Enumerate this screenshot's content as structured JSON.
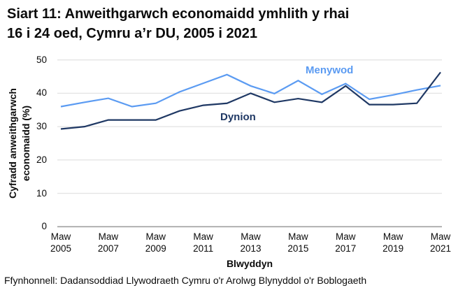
{
  "page": {
    "title_line1": "Siart 11: Anweithgarwch economaidd ymhlith y rhai",
    "title_line2": "16 i 24 oed, Cymru a’r DU, 2005 i 2021",
    "source": "Ffynhonnell: Dadansoddiad Llywodraeth Cymru o'r Arolwg Blynyddol o'r Boblogaeth"
  },
  "chart_data": {
    "type": "line",
    "title": "Siart 11: Anweithgarwch economaidd ymhlith y rhai 16 i 24 oed, Cymru a’r DU, 2005 i 2021",
    "xlabel": "Blwyddyn",
    "ylabel": "Cyfradd anweithgarwch economaidd (%)",
    "ylabel_lines": [
      "Cyfradd anweithgarwch",
      "economaidd (%)"
    ],
    "ylim": [
      0,
      50
    ],
    "yticks": [
      0,
      10,
      20,
      30,
      40,
      50
    ],
    "grid": "horizontal",
    "legend_position": "inline-labels",
    "x": [
      2005,
      2006,
      2007,
      2008,
      2009,
      2010,
      2011,
      2012,
      2013,
      2014,
      2015,
      2016,
      2017,
      2018,
      2019,
      2020,
      2021
    ],
    "xticks": [
      2005,
      2007,
      2009,
      2011,
      2013,
      2015,
      2017,
      2019,
      2021
    ],
    "xtick_month_label": "Maw",
    "series": [
      {
        "name": "Menywod",
        "color": "#5B9BF2",
        "values": [
          36.0,
          37.3,
          38.5,
          36.0,
          37.0,
          40.4,
          43.0,
          45.6,
          42.2,
          39.9,
          43.8,
          39.7,
          42.9,
          38.2,
          39.5,
          41.0,
          42.3
        ]
      },
      {
        "name": "Dynion",
        "color": "#1F3864",
        "values": [
          29.3,
          30.0,
          32.0,
          32.0,
          32.0,
          34.7,
          36.4,
          37.0,
          40.0,
          37.3,
          38.4,
          37.3,
          42.2,
          36.6,
          36.6,
          37.0,
          46.3
        ]
      }
    ],
    "colors": {
      "grid": "#E4E4E4",
      "axis": "#A0A0A0",
      "text": "#000000"
    }
  }
}
